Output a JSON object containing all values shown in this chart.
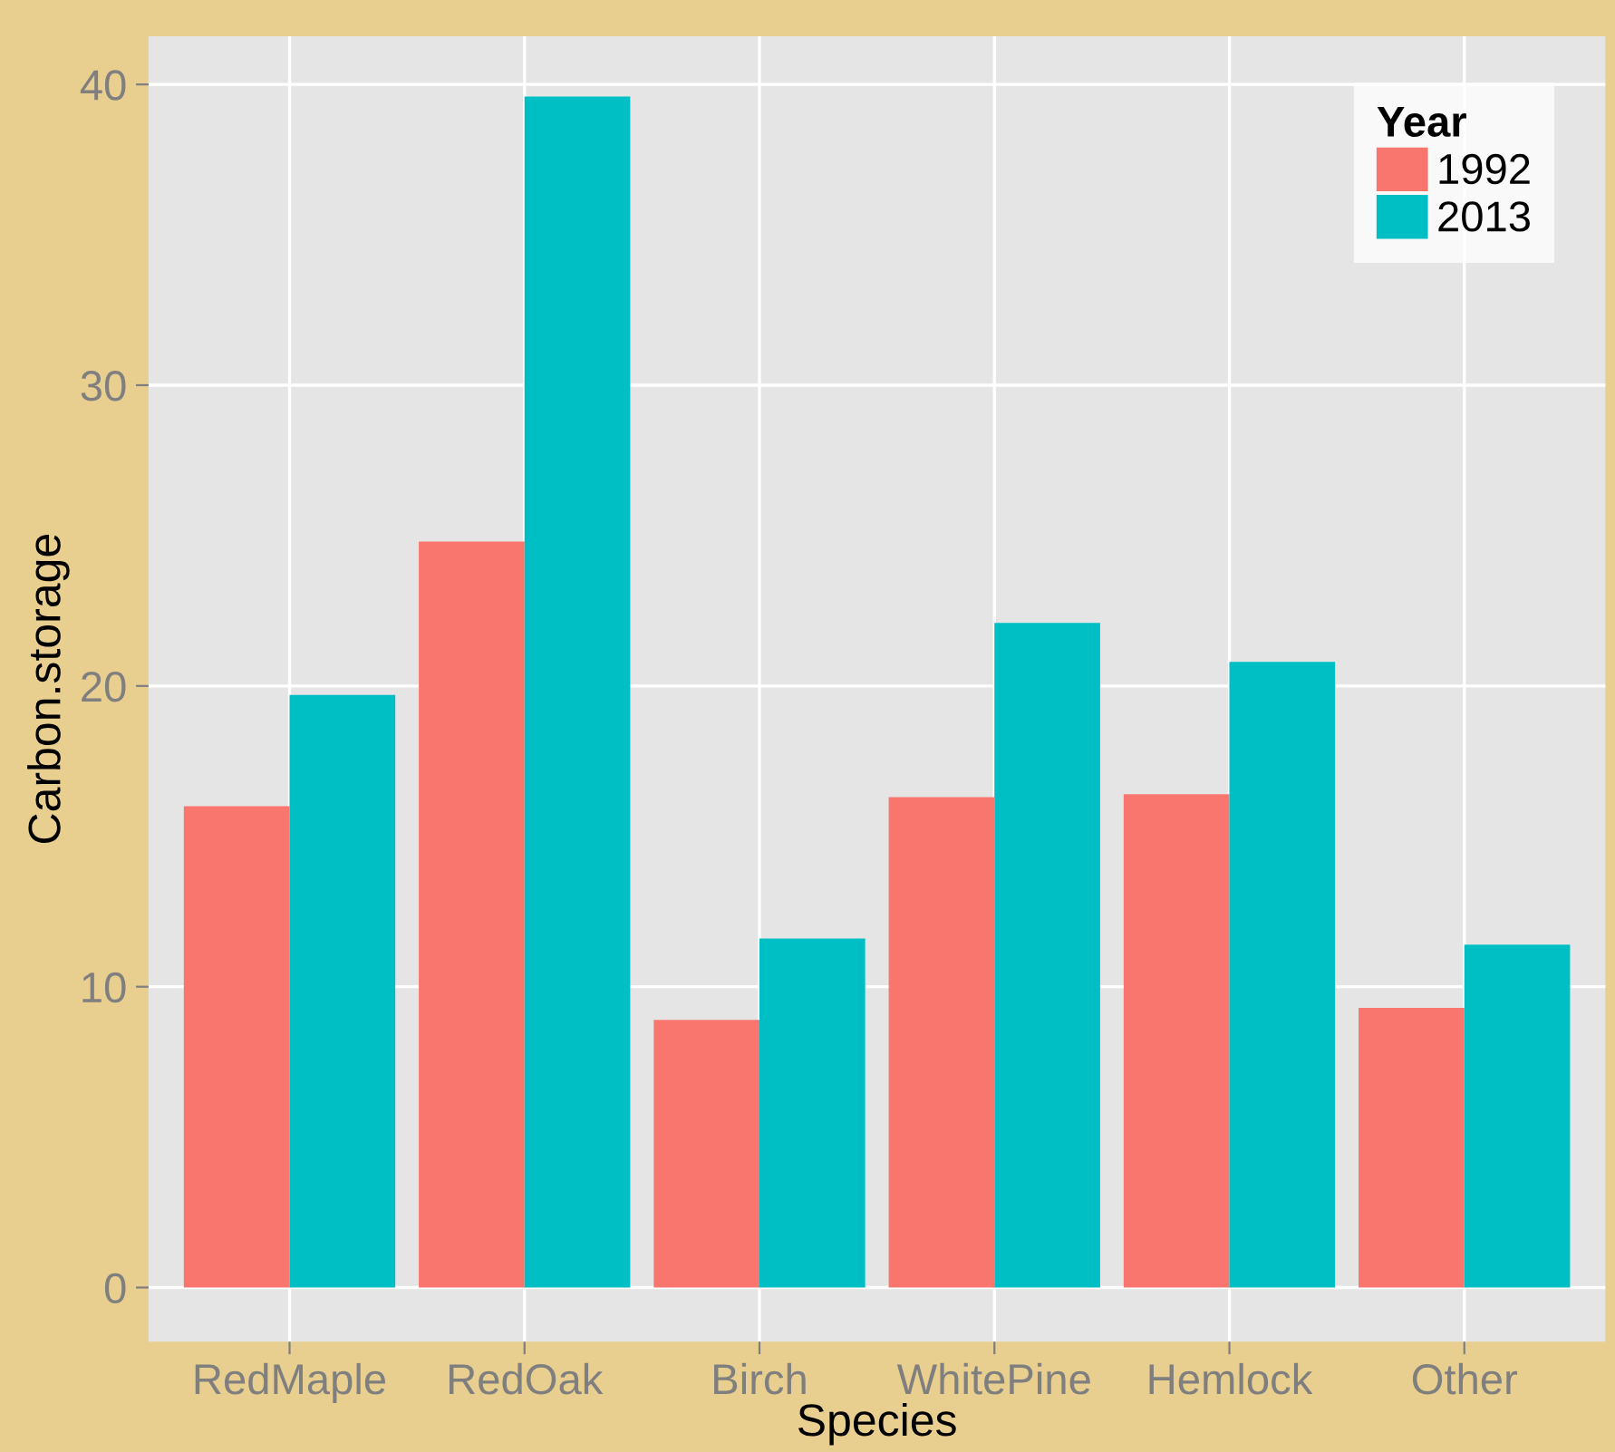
{
  "chart_data": {
    "type": "bar",
    "xlabel": "Species",
    "ylabel": "Carbon.storage",
    "legend_title": "Year",
    "categories": [
      "RedMaple",
      "RedOak",
      "Birch",
      "WhitePine",
      "Hemlock",
      "Other"
    ],
    "series": [
      {
        "name": "1992",
        "color": "#f8766d",
        "values": [
          16.0,
          24.8,
          8.9,
          16.3,
          16.4,
          9.3
        ]
      },
      {
        "name": "2013",
        "color": "#00bfc4",
        "values": [
          19.7,
          39.6,
          11.6,
          22.1,
          20.8,
          11.4
        ]
      }
    ],
    "ylim": [
      -1.8,
      41.6
    ],
    "yticks": [
      0,
      10,
      20,
      30,
      40
    ],
    "grid": true,
    "legend": "top right"
  }
}
